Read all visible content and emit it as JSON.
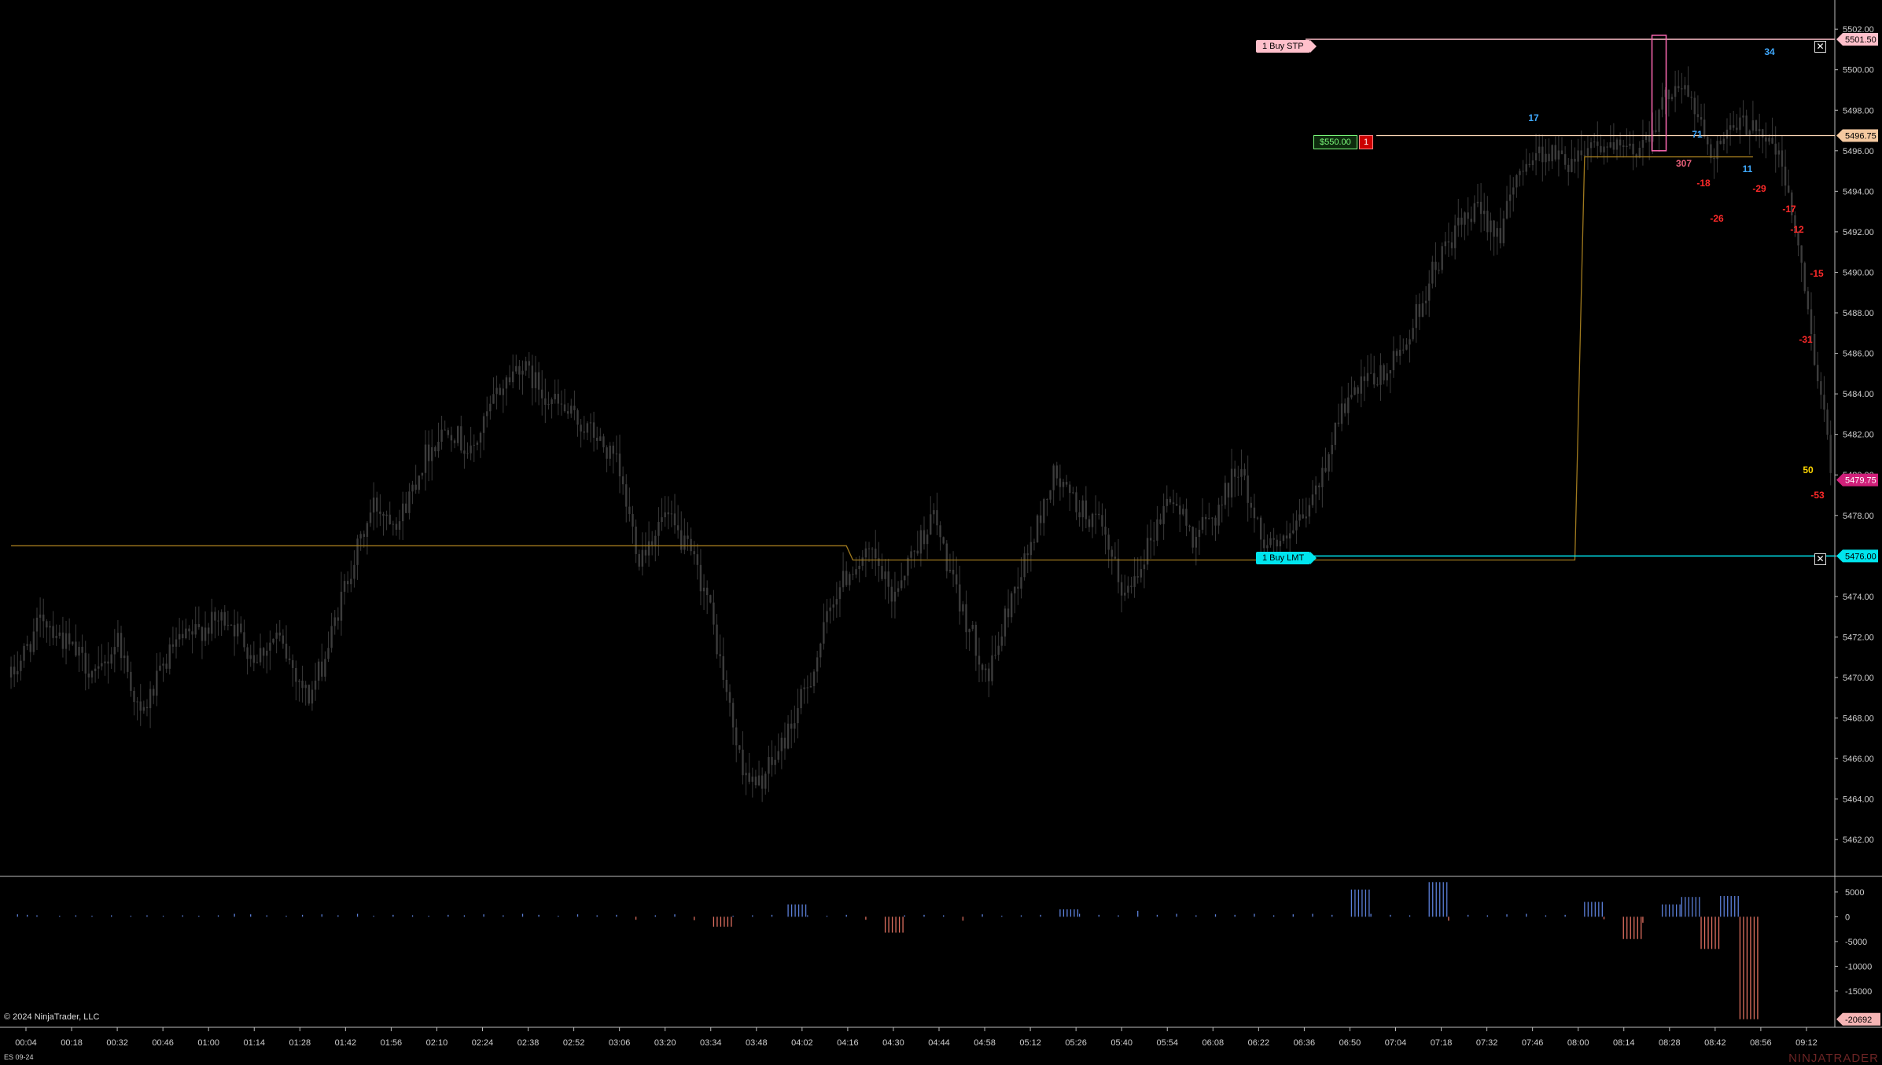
{
  "chart_data": {
    "type": "candlestick",
    "instrument": "ES 09-24",
    "time_labels": [
      "00:04",
      "00:18",
      "00:32",
      "00:46",
      "01:00",
      "01:14",
      "01:28",
      "01:42",
      "01:56",
      "02:10",
      "02:24",
      "02:38",
      "02:52",
      "03:06",
      "03:20",
      "03:34",
      "03:48",
      "04:02",
      "04:16",
      "04:30",
      "04:44",
      "04:58",
      "05:12",
      "05:26",
      "05:40",
      "05:54",
      "06:08",
      "06:22",
      "06:36",
      "06:50",
      "07:04",
      "07:18",
      "07:32",
      "07:46",
      "08:00",
      "08:14",
      "08:28",
      "08:42",
      "08:56",
      "09:12"
    ],
    "price_ticks": [
      "5502.00",
      "5500.00",
      "5498.00",
      "5496.00",
      "5494.00",
      "5492.00",
      "5490.00",
      "5488.00",
      "5486.00",
      "5484.00",
      "5482.00",
      "5480.00",
      "5478.00",
      "5476.00",
      "5474.00",
      "5472.00",
      "5470.00",
      "5468.00",
      "5466.00",
      "5464.00",
      "5462.00"
    ],
    "ylim": [
      5460.3,
      5502.2
    ],
    "price_keypoints": [
      [
        0,
        5470.0
      ],
      [
        10,
        5473.0
      ],
      [
        18,
        5471.5
      ],
      [
        27,
        5470.0
      ],
      [
        33,
        5472.0
      ],
      [
        40,
        5468.0
      ],
      [
        50,
        5471.5
      ],
      [
        60,
        5472.5
      ],
      [
        67,
        5473.0
      ],
      [
        75,
        5471.0
      ],
      [
        82,
        5472.0
      ],
      [
        92,
        5469.0
      ],
      [
        97,
        5471.0
      ],
      [
        104,
        5475.0
      ],
      [
        112,
        5478.5
      ],
      [
        120,
        5477.8
      ],
      [
        128,
        5481.0
      ],
      [
        135,
        5482.5
      ],
      [
        142,
        5481.0
      ],
      [
        150,
        5484.0
      ],
      [
        157,
        5485.5
      ],
      [
        165,
        5484.0
      ],
      [
        172,
        5483.0
      ],
      [
        180,
        5482.0
      ],
      [
        187,
        5480.5
      ],
      [
        194,
        5476.0
      ],
      [
        202,
        5478.0
      ],
      [
        210,
        5476.0
      ],
      [
        215,
        5474.0
      ],
      [
        220,
        5470.0
      ],
      [
        225,
        5466.0
      ],
      [
        230,
        5464.5
      ],
      [
        236,
        5466.0
      ],
      [
        242,
        5468.0
      ],
      [
        248,
        5470.5
      ],
      [
        254,
        5474.0
      ],
      [
        260,
        5475.5
      ],
      [
        266,
        5476.0
      ],
      [
        272,
        5474.0
      ],
      [
        278,
        5476.0
      ],
      [
        285,
        5478.0
      ],
      [
        292,
        5474.0
      ],
      [
        297,
        5472.0
      ],
      [
        302,
        5470.0
      ],
      [
        309,
        5474.0
      ],
      [
        316,
        5477.0
      ],
      [
        322,
        5480.0
      ],
      [
        329,
        5478.5
      ],
      [
        336,
        5477.5
      ],
      [
        344,
        5474.0
      ],
      [
        351,
        5476.5
      ],
      [
        358,
        5479.0
      ],
      [
        365,
        5477.0
      ],
      [
        372,
        5478.0
      ],
      [
        379,
        5480.5
      ],
      [
        386,
        5477.0
      ],
      [
        393,
        5476.5
      ],
      [
        400,
        5478.0
      ],
      [
        405,
        5480.0
      ],
      [
        410,
        5483.0
      ],
      [
        418,
        5484.5
      ],
      [
        425,
        5485.0
      ],
      [
        432,
        5487.0
      ],
      [
        439,
        5490.0
      ],
      [
        446,
        5492.0
      ],
      [
        453,
        5493.0
      ],
      [
        460,
        5492.0
      ],
      [
        467,
        5495.5
      ],
      [
        474,
        5496.0
      ],
      [
        481,
        5495.5
      ],
      [
        488,
        5496.5
      ],
      [
        495,
        5496.0
      ],
      [
        502,
        5496.0
      ],
      [
        508,
        5497.5
      ],
      [
        514,
        5499.5
      ],
      [
        519,
        5498.5
      ],
      [
        525,
        5496.0
      ],
      [
        532,
        5497.0
      ],
      [
        538,
        5497.5
      ],
      [
        545,
        5496.0
      ],
      [
        549,
        5494.0
      ],
      [
        553,
        5490.0
      ],
      [
        557,
        5486.0
      ],
      [
        560,
        5483.0
      ],
      [
        562,
        5480.0
      ]
    ],
    "price_label_current": "5479.75",
    "bar_numbers": [
      {
        "text": "17",
        "color": "#3fa9ff"
      },
      {
        "text": "34",
        "color": "#3fa9ff"
      },
      {
        "text": "71",
        "color": "#3fa9ff"
      },
      {
        "text": "11",
        "color": "#3fa9ff"
      },
      {
        "text": "307",
        "color": "#e8607a"
      },
      {
        "text": "-18",
        "color": "#ff2a2a"
      },
      {
        "text": "-26",
        "color": "#ff2a2a"
      },
      {
        "text": "-29",
        "color": "#ff2a2a"
      },
      {
        "text": "-17",
        "color": "#ff2a2a"
      },
      {
        "text": "-12",
        "color": "#ff2a2a"
      },
      {
        "text": "-15",
        "color": "#ff2a2a"
      },
      {
        "text": "-31",
        "color": "#ff2a2a"
      },
      {
        "text": "50",
        "color": "#ffd700"
      },
      {
        "text": "-53",
        "color": "#ff2a2a"
      }
    ],
    "orders": {
      "buy_stop": {
        "price": 5501.5,
        "label": "1  Buy STP",
        "axis_label": "5501.50",
        "color": "#ffc0cb"
      },
      "buy_limit": {
        "price": 5476.0,
        "label": "1  Buy LMT",
        "axis_label": "5476.00",
        "color": "#00e5ee"
      },
      "position": {
        "price": 5496.75,
        "axis_label": "5496.75",
        "pnl": "$550.00",
        "qty": "1",
        "color": "#ffdab9"
      }
    },
    "vwap_segments": [
      {
        "from": 0,
        "to": 258,
        "price": 5476.5
      },
      {
        "from": 260,
        "to": 483,
        "price": 5475.8
      },
      {
        "from": 486,
        "to": 538,
        "price": 5495.7
      }
    ],
    "indicator": {
      "ticks": [
        "5000",
        "0",
        "-5000",
        "-10000",
        "-15000"
      ],
      "current_label": "-20692",
      "ylim": [
        -22000,
        8000
      ],
      "bars": [
        [
          2,
          500
        ],
        [
          5,
          400
        ],
        [
          8,
          300
        ],
        [
          15,
          200
        ],
        [
          20,
          300
        ],
        [
          25,
          200
        ],
        [
          31,
          300
        ],
        [
          37,
          200
        ],
        [
          42,
          300
        ],
        [
          47,
          200
        ],
        [
          53,
          300
        ],
        [
          58,
          200
        ],
        [
          64,
          300
        ],
        [
          69,
          600
        ],
        [
          74,
          500
        ],
        [
          79,
          300
        ],
        [
          85,
          200
        ],
        [
          90,
          400
        ],
        [
          96,
          500
        ],
        [
          101,
          300
        ],
        [
          107,
          600
        ],
        [
          112,
          200
        ],
        [
          118,
          400
        ],
        [
          124,
          300
        ],
        [
          129,
          200
        ],
        [
          135,
          400
        ],
        [
          140,
          300
        ],
        [
          146,
          500
        ],
        [
          152,
          300
        ],
        [
          158,
          600
        ],
        [
          163,
          400
        ],
        [
          169,
          200
        ],
        [
          175,
          500
        ],
        [
          181,
          300
        ],
        [
          187,
          400
        ],
        [
          193,
          -600
        ],
        [
          199,
          300
        ],
        [
          205,
          500
        ],
        [
          211,
          -700
        ],
        [
          217,
          -2000
        ],
        [
          223,
          200
        ],
        [
          229,
          300
        ],
        [
          235,
          400
        ],
        [
          240,
          2500
        ],
        [
          246,
          300
        ],
        [
          252,
          200
        ],
        [
          258,
          400
        ],
        [
          264,
          -600
        ],
        [
          270,
          -3200
        ],
        [
          276,
          300
        ],
        [
          282,
          400
        ],
        [
          288,
          300
        ],
        [
          294,
          -800
        ],
        [
          300,
          500
        ],
        [
          306,
          200
        ],
        [
          312,
          300
        ],
        [
          318,
          400
        ],
        [
          324,
          1500
        ],
        [
          330,
          600
        ],
        [
          336,
          400
        ],
        [
          342,
          300
        ],
        [
          348,
          1200
        ],
        [
          354,
          400
        ],
        [
          360,
          600
        ],
        [
          366,
          300
        ],
        [
          372,
          500
        ],
        [
          378,
          400
        ],
        [
          384,
          600
        ],
        [
          390,
          300
        ],
        [
          396,
          500
        ],
        [
          402,
          600
        ],
        [
          408,
          400
        ],
        [
          414,
          5500
        ],
        [
          420,
          600
        ],
        [
          426,
          400
        ],
        [
          432,
          300
        ],
        [
          438,
          7000
        ],
        [
          444,
          -800
        ],
        [
          450,
          400
        ],
        [
          456,
          300
        ],
        [
          462,
          500
        ],
        [
          468,
          600
        ],
        [
          474,
          300
        ],
        [
          480,
          400
        ],
        [
          486,
          3000
        ],
        [
          492,
          -500
        ],
        [
          498,
          -4500
        ],
        [
          504,
          -1200
        ],
        [
          510,
          2500
        ],
        [
          516,
          4000
        ],
        [
          522,
          -6500
        ],
        [
          528,
          4200
        ],
        [
          534,
          -20692
        ]
      ]
    }
  },
  "labels": {
    "copyright": "© 2024 NinjaTrader, LLC",
    "instrument": "ES 09-24",
    "brand": "NINJATRADER"
  },
  "icons": {
    "close": "close-icon"
  }
}
